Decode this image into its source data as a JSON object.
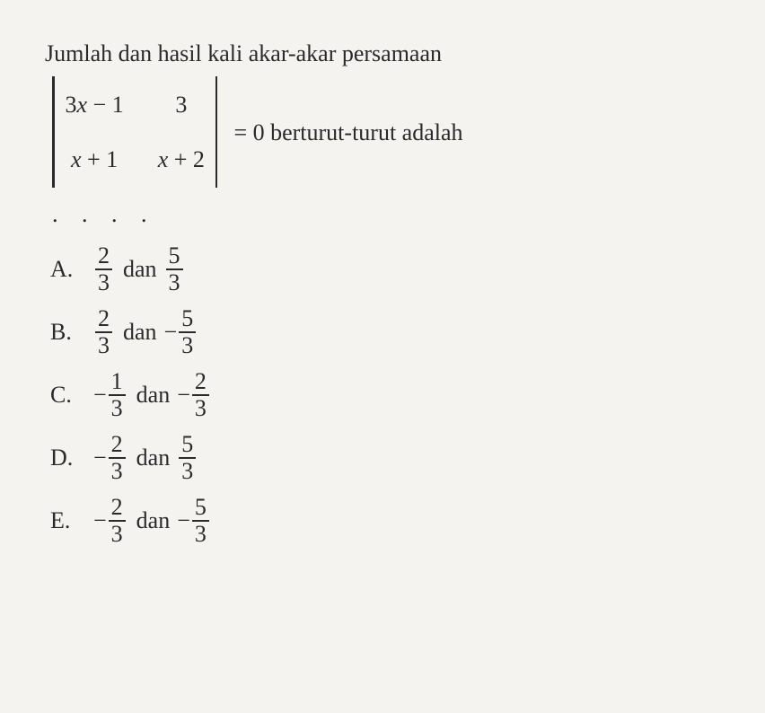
{
  "question": {
    "line1": "Jumlah dan hasil kali akar-akar persamaan",
    "after_matrix": "= 0 berturut-turut adalah",
    "dots": ". . . ."
  },
  "matrix": {
    "a11_a": "3",
    "a11_x": "x",
    "a11_b": " − 1",
    "a12": "3",
    "a21_x": "x",
    "a21_b": " + 1",
    "a22_x": "x",
    "a22_b": " + 2"
  },
  "options": {
    "A": {
      "label": "A.",
      "f1": {
        "sign": "",
        "num": "2",
        "den": "3"
      },
      "word": "dan",
      "f2": {
        "sign": "",
        "num": "5",
        "den": "3"
      }
    },
    "B": {
      "label": "B.",
      "f1": {
        "sign": "",
        "num": "2",
        "den": "3"
      },
      "word": "dan",
      "f2": {
        "sign": "−",
        "num": "5",
        "den": "3"
      }
    },
    "C": {
      "label": "C.",
      "f1": {
        "sign": "−",
        "num": "1",
        "den": "3"
      },
      "word": "dan",
      "f2": {
        "sign": "−",
        "num": "2",
        "den": "3"
      }
    },
    "D": {
      "label": "D.",
      "f1": {
        "sign": "−",
        "num": "2",
        "den": "3"
      },
      "word": "dan",
      "f2": {
        "sign": "",
        "num": "5",
        "den": "3"
      }
    },
    "E": {
      "label": "E.",
      "f1": {
        "sign": "−",
        "num": "2",
        "den": "3"
      },
      "word": "dan",
      "f2": {
        "sign": "−",
        "num": "5",
        "den": "3"
      }
    }
  },
  "style": {
    "background_color": "#f5f3ef",
    "text_color": "#2a2a2a",
    "font_family": "Times New Roman",
    "font_size_pt": 20
  }
}
